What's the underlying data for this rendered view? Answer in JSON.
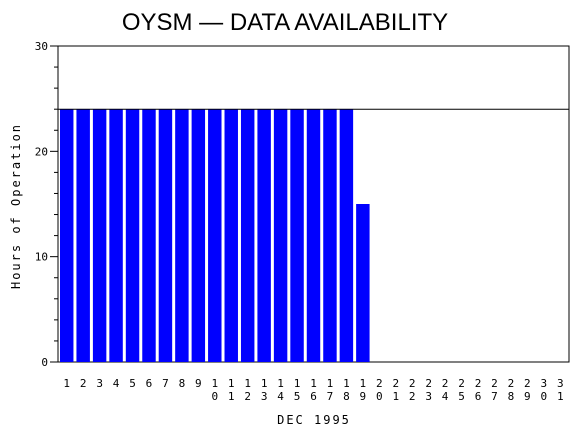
{
  "chart_data": {
    "type": "bar",
    "title": "OYSM — DATA AVAILABILITY",
    "xlabel": "DEC 1995",
    "ylabel": "Hours of Operation",
    "ylim": [
      0,
      30
    ],
    "yticks": [
      0,
      10,
      20,
      30
    ],
    "reference_line": 24,
    "bar_color": "#0000ff",
    "categories": [
      "1",
      "2",
      "3",
      "4",
      "5",
      "6",
      "7",
      "8",
      "9",
      "10",
      "11",
      "12",
      "13",
      "14",
      "15",
      "16",
      "17",
      "18",
      "19",
      "20",
      "21",
      "22",
      "23",
      "24",
      "25",
      "26",
      "27",
      "28",
      "29",
      "30",
      "31"
    ],
    "values": [
      24,
      24,
      24,
      24,
      24,
      24,
      24,
      24,
      24,
      24,
      24,
      24,
      24,
      24,
      24,
      24,
      24,
      24,
      15,
      0,
      0,
      0,
      0,
      0,
      0,
      0,
      0,
      0,
      0,
      0,
      0
    ]
  }
}
